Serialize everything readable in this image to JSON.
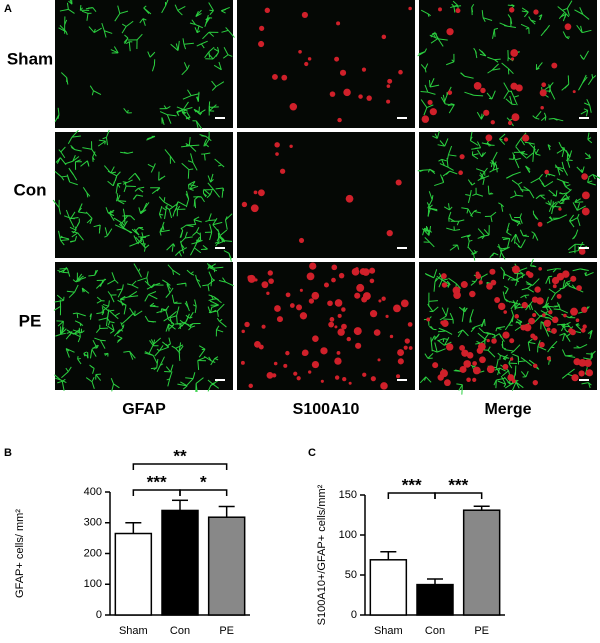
{
  "panel_a": {
    "label": "A",
    "rows": [
      "Sham",
      "Con",
      "PE"
    ],
    "columns": [
      {
        "name": "GFAP",
        "color": "#2db84a"
      },
      {
        "name": "S100A10",
        "color": "#d7262b"
      },
      {
        "name": "Merge",
        "color": "#000000"
      }
    ]
  },
  "chart_data": [
    {
      "type": "bar",
      "panel": "B",
      "ylabel": "GFAP+ cells/ mm²",
      "categories": [
        "Sham",
        "Con",
        "PE"
      ],
      "values": [
        265,
        340,
        318
      ],
      "errors": [
        35,
        33,
        35
      ],
      "colors": [
        "#ffffff",
        "#000000",
        "#888888"
      ],
      "ylim": [
        0,
        400
      ],
      "yticks": [
        0,
        100,
        200,
        300,
        400
      ],
      "annotations": [
        {
          "text": "**",
          "between": [
            "Sham",
            "PE"
          ]
        },
        {
          "text": "***",
          "between": [
            "Sham",
            "Con"
          ]
        },
        {
          "text": "*",
          "between": [
            "Con",
            "PE"
          ]
        }
      ]
    },
    {
      "type": "bar",
      "panel": "C",
      "ylabel": "S100A10+/GFAP+ cells/mm²",
      "categories": [
        "Sham",
        "Con",
        "PE"
      ],
      "values": [
        69,
        38,
        131
      ],
      "errors": [
        10,
        7,
        5
      ],
      "colors": [
        "#ffffff",
        "#000000",
        "#888888"
      ],
      "ylim": [
        0,
        150
      ],
      "yticks": [
        0,
        50,
        100,
        150
      ],
      "annotations": [
        {
          "text": "***",
          "between": [
            "Sham",
            "Con"
          ]
        },
        {
          "text": "***",
          "between": [
            "Con",
            "PE"
          ]
        }
      ]
    }
  ]
}
